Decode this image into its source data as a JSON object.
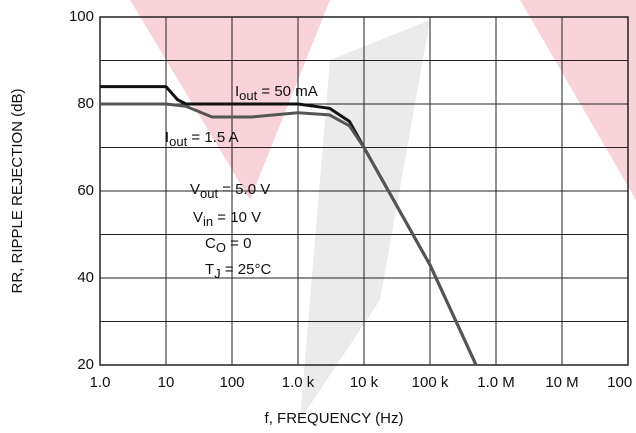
{
  "chart_data": {
    "type": "line",
    "x_label": "f, FREQUENCY (Hz)",
    "y_label": "RR, RIPPLE REJECTION (dB)",
    "xscale": "log",
    "grid": true,
    "xlim": [
      1,
      100000000
    ],
    "xticks": [
      {
        "value": 1,
        "label": "1.0"
      },
      10,
      100,
      {
        "value": 1000,
        "label": "1.0 k"
      },
      {
        "value": 10000,
        "label": "10 k"
      },
      {
        "value": 100000,
        "label": "100 k"
      },
      {
        "value": 1000000,
        "label": "1.0 M"
      },
      {
        "value": 10000000,
        "label": "10 M"
      },
      {
        "value": 100000000,
        "label": "100 M"
      }
    ],
    "ylim": [
      20,
      100
    ],
    "yticks": [
      20,
      40,
      60,
      80,
      100
    ],
    "y_minor_grid": [
      30,
      50,
      70,
      90
    ],
    "series": [
      {
        "name": "50 mA",
        "color": "#111111",
        "x": [
          1,
          10,
          15,
          20,
          100,
          1000,
          3000,
          6000,
          10000,
          100000,
          500000
        ],
        "values": [
          84,
          84,
          81,
          80,
          80,
          80,
          79,
          76,
          70,
          43,
          20
        ]
      },
      {
        "name": "1.5 A",
        "color": "#555555",
        "x": [
          1,
          10,
          20,
          50,
          200,
          1000,
          3000,
          6000,
          10000,
          100000,
          500000
        ],
        "values": [
          80,
          80,
          79.5,
          77,
          77,
          78,
          77.5,
          75,
          70,
          43,
          20
        ]
      }
    ],
    "annotations": [
      {
        "main": "I",
        "sub": "out",
        "after": " = 50 mA"
      },
      {
        "main": "I",
        "sub": "out",
        "after": " = 1.5 A"
      },
      {
        "main": "V",
        "sub": "out",
        "after": " = 5.0 V"
      },
      {
        "main": "V",
        "sub": "in",
        "after": " = 10 V"
      },
      {
        "main": "C",
        "sub": "O",
        "after": " = 0"
      },
      {
        "main": "T",
        "sub": "J",
        "after": " = 25°C"
      }
    ]
  }
}
